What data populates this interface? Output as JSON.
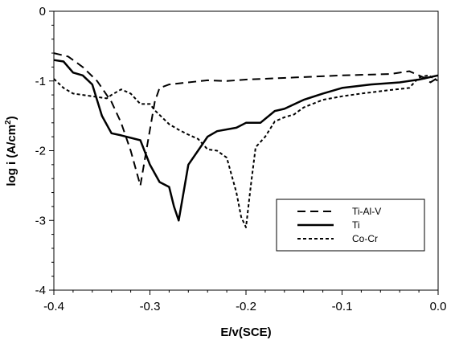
{
  "chart_data": {
    "type": "line",
    "xlabel": "E/v(SCE)",
    "ylabel_prefix": "log i (A/cm",
    "ylabel_exp": "2",
    "ylabel_suffix": ")",
    "xlim": [
      -0.4,
      0.0
    ],
    "ylim": [
      -4,
      0
    ],
    "x_ticks": [
      -0.4,
      -0.3,
      -0.2,
      -0.1,
      0.0
    ],
    "x_tick_labels": [
      "-0.4",
      "-0.3",
      "-0.2",
      "-0.1",
      "0.0"
    ],
    "y_ticks": [
      0,
      -1,
      -2,
      -3,
      -4
    ],
    "y_tick_labels": [
      "0",
      "-1",
      "-2",
      "-3",
      "-4"
    ],
    "grid": false,
    "legend_position": "bottom-right",
    "series": [
      {
        "name": "Ti-Al-V",
        "style": "dashed",
        "points": [
          [
            -0.4,
            -0.6
          ],
          [
            -0.385,
            -0.65
          ],
          [
            -0.37,
            -0.8
          ],
          [
            -0.355,
            -1.0
          ],
          [
            -0.34,
            -1.3
          ],
          [
            -0.33,
            -1.6
          ],
          [
            -0.32,
            -2.0
          ],
          [
            -0.31,
            -2.5
          ],
          [
            -0.305,
            -2.1
          ],
          [
            -0.3,
            -1.7
          ],
          [
            -0.295,
            -1.3
          ],
          [
            -0.29,
            -1.1
          ],
          [
            -0.28,
            -1.05
          ],
          [
            -0.26,
            -1.02
          ],
          [
            -0.24,
            -0.99
          ],
          [
            -0.22,
            -1.0
          ],
          [
            -0.2,
            -0.98
          ],
          [
            -0.15,
            -0.95
          ],
          [
            -0.1,
            -0.92
          ],
          [
            -0.05,
            -0.9
          ],
          [
            -0.03,
            -0.86
          ],
          [
            -0.015,
            -0.95
          ],
          [
            -0.008,
            -1.02
          ],
          [
            0.0,
            -0.95
          ]
        ]
      },
      {
        "name": "Ti",
        "style": "solid",
        "points": [
          [
            -0.4,
            -0.7
          ],
          [
            -0.39,
            -0.72
          ],
          [
            -0.38,
            -0.88
          ],
          [
            -0.37,
            -0.92
          ],
          [
            -0.36,
            -1.05
          ],
          [
            -0.35,
            -1.5
          ],
          [
            -0.34,
            -1.75
          ],
          [
            -0.33,
            -1.78
          ],
          [
            -0.31,
            -1.85
          ],
          [
            -0.3,
            -2.2
          ],
          [
            -0.29,
            -2.45
          ],
          [
            -0.28,
            -2.52
          ],
          [
            -0.275,
            -2.8
          ],
          [
            -0.27,
            -3.0
          ],
          [
            -0.265,
            -2.6
          ],
          [
            -0.26,
            -2.2
          ],
          [
            -0.25,
            -2.0
          ],
          [
            -0.24,
            -1.8
          ],
          [
            -0.23,
            -1.72
          ],
          [
            -0.21,
            -1.67
          ],
          [
            -0.2,
            -1.6
          ],
          [
            -0.185,
            -1.6
          ],
          [
            -0.17,
            -1.43
          ],
          [
            -0.16,
            -1.4
          ],
          [
            -0.14,
            -1.27
          ],
          [
            -0.12,
            -1.18
          ],
          [
            -0.1,
            -1.1
          ],
          [
            -0.07,
            -1.05
          ],
          [
            -0.04,
            -1.02
          ],
          [
            -0.02,
            -0.98
          ],
          [
            0.0,
            -0.92
          ]
        ]
      },
      {
        "name": "Co-Cr",
        "style": "dotted",
        "points": [
          [
            -0.4,
            -0.97
          ],
          [
            -0.39,
            -1.1
          ],
          [
            -0.38,
            -1.18
          ],
          [
            -0.37,
            -1.2
          ],
          [
            -0.36,
            -1.22
          ],
          [
            -0.345,
            -1.25
          ],
          [
            -0.34,
            -1.2
          ],
          [
            -0.33,
            -1.12
          ],
          [
            -0.32,
            -1.18
          ],
          [
            -0.31,
            -1.33
          ],
          [
            -0.3,
            -1.33
          ],
          [
            -0.295,
            -1.42
          ],
          [
            -0.28,
            -1.62
          ],
          [
            -0.27,
            -1.7
          ],
          [
            -0.26,
            -1.77
          ],
          [
            -0.25,
            -1.83
          ],
          [
            -0.24,
            -1.98
          ],
          [
            -0.23,
            -2.0
          ],
          [
            -0.22,
            -2.1
          ],
          [
            -0.21,
            -2.6
          ],
          [
            -0.205,
            -2.95
          ],
          [
            -0.2,
            -3.1
          ],
          [
            -0.195,
            -2.5
          ],
          [
            -0.19,
            -1.95
          ],
          [
            -0.18,
            -1.8
          ],
          [
            -0.17,
            -1.58
          ],
          [
            -0.16,
            -1.52
          ],
          [
            -0.15,
            -1.48
          ],
          [
            -0.14,
            -1.38
          ],
          [
            -0.12,
            -1.27
          ],
          [
            -0.1,
            -1.22
          ],
          [
            -0.08,
            -1.18
          ],
          [
            -0.05,
            -1.13
          ],
          [
            -0.03,
            -1.1
          ],
          [
            -0.02,
            -0.95
          ],
          [
            -0.01,
            -0.92
          ],
          [
            0.0,
            -1.0
          ]
        ]
      }
    ]
  }
}
